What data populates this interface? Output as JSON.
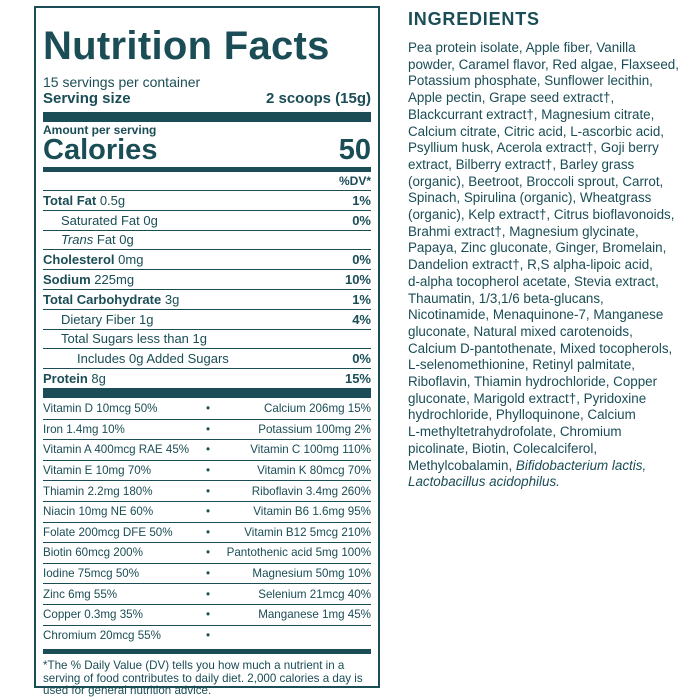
{
  "label": {
    "title": "Nutrition Facts",
    "servings_per_container": "15 servings per container",
    "serving_size_label": "Serving size",
    "serving_size_value": "2 scoops (15g)",
    "amount_per_serving": "Amount per serving",
    "calories_label": "Calories",
    "calories_value": "50",
    "dv_header": "%DV*",
    "nutrients": [
      {
        "name": "Total Fat",
        "amount": "0.5g",
        "dv": "1%"
      },
      {
        "name": "Saturated Fat",
        "amount": "0g",
        "dv": "0%"
      },
      {
        "name": "Trans",
        "amount": "Fat 0g",
        "dv": ""
      },
      {
        "name": "Cholesterol",
        "amount": "0mg",
        "dv": "0%"
      },
      {
        "name": "Sodium",
        "amount": "225mg",
        "dv": "10%"
      },
      {
        "name": "Total Carbohydrate",
        "amount": "3g",
        "dv": "1%"
      },
      {
        "name": "Dietary Fiber",
        "amount": "1g",
        "dv": "4%"
      },
      {
        "name": "Total Sugars less than",
        "amount": "1g",
        "dv": ""
      },
      {
        "name": "Includes 0g Added Sugars",
        "amount": "",
        "dv": "0%"
      },
      {
        "name": "Protein",
        "amount": "8g",
        "dv": "15%"
      }
    ],
    "vitamins": [
      {
        "left": "Vitamin D 10mcg 50%",
        "right": "Calcium 206mg 15%"
      },
      {
        "left": "Iron 1.4mg 10%",
        "right": "Potassium 100mg 2%"
      },
      {
        "left": "Vitamin A 400mcg RAE 45%",
        "right": "Vitamin C 100mg 110%"
      },
      {
        "left": "Vitamin E 10mg 70%",
        "right": "Vitamin K 80mcg 70%"
      },
      {
        "left": "Thiamin 2.2mg 180%",
        "right": "Riboflavin 3.4mg 260%"
      },
      {
        "left": "Niacin 10mg NE 60%",
        "right": "Vitamin B6 1.6mg 95%"
      },
      {
        "left": "Folate 200mcg DFE 50%",
        "right": "Vitamin B12 5mcg 210%"
      },
      {
        "left": "Biotin 60mcg 200%",
        "right": "Pantothenic acid 5mg 100%"
      },
      {
        "left": "Iodine 75mcg 50%",
        "right": "Magnesium 50mg 10%"
      },
      {
        "left": "Zinc 6mg 55%",
        "right": "Selenium 21mcg 40%"
      },
      {
        "left": "Copper 0.3mg 35%",
        "right": "Manganese 1mg 45%"
      },
      {
        "left": "Chromium 20mcg 55%",
        "right": ""
      }
    ],
    "bullet": "•",
    "footnote": "*The % Daily Value (DV) tells you how much a nutrient in a serving of food contributes to daily diet. 2,000 calories a day is used for general nutrition advice."
  },
  "ingredients": {
    "title": "INGREDIENTS",
    "lines": [
      "Pea protein isolate, Apple fiber, Vanilla",
      "powder, Caramel flavor, Red algae, Flaxseed,",
      "Potassium phosphate, Sunflower lecithin,",
      "Apple pectin, Grape seed extract†,",
      "Blackcurrant extract†, Magnesium citrate,",
      "Calcium citrate, Citric acid, L-ascorbic acid,",
      "Psyllium husk, Acerola extract†, Goji berry",
      "extract, Bilberry extract†, Barley grass",
      "(organic), Beetroot, Broccoli sprout, Carrot,",
      "Spinach, Spirulina (organic), Wheatgrass",
      "(organic), Kelp extract†, Citrus bioflavonoids,",
      "Brahmi extract†, Magnesium glycinate,",
      "Papaya, Zinc gluconate, Ginger, Bromelain,",
      "Dandelion extract†, R,S alpha-lipoic acid,",
      "d-alpha tocopherol acetate, Stevia extract,",
      "Thaumatin, 1/3,1/6 beta-glucans,",
      "Nicotinamide, Menaquinone-7, Manganese",
      "gluconate, Natural mixed carotenoids,",
      "Calcium D-pantothenate, Mixed tocopherols,",
      "L-selenomethionine, Retinyl palmitate,",
      "Riboflavin, Thiamin hydrochloride, Copper",
      "gluconate, Marigold extract†, Pyridoxine",
      "hydrochloride, Phylloquinone, Calcium",
      "L-methyltetrahydrofolate, Chromium",
      "picolinate, Biotin, Colecalciferol,"
    ],
    "last_line_prefix": "Methylcobalamin, ",
    "last_line_italic": "Bifidobacterium lactis,",
    "final_italic_line": "Lactobacillus acidophilus."
  }
}
